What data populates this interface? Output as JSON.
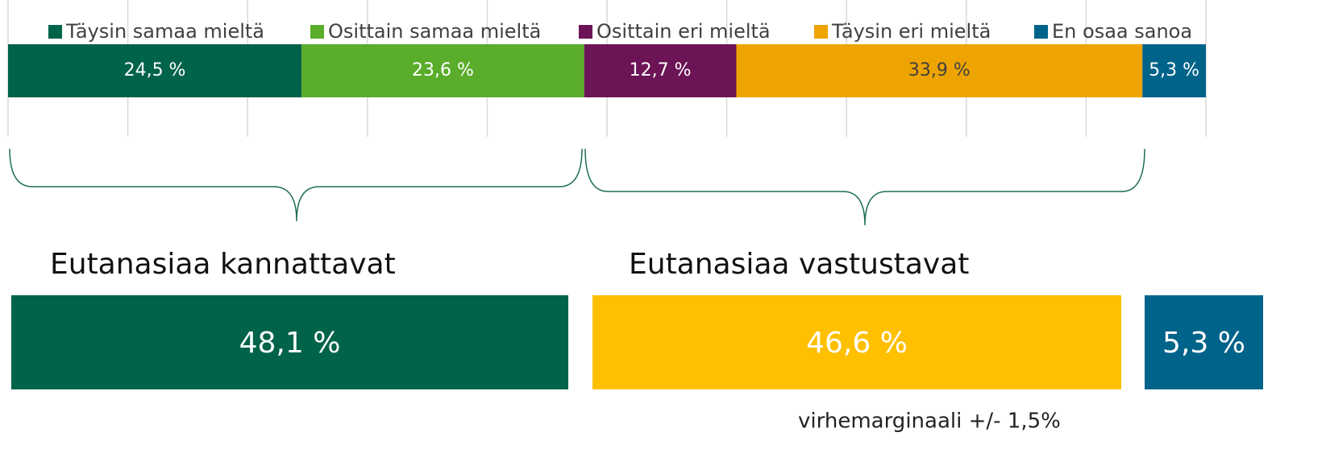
{
  "chart_data": {
    "type": "stacked-bar-horizontal",
    "categories": [
      null
    ],
    "series": [
      {
        "name": "Täysin samaa mieltä",
        "color": "#00634a",
        "values": [
          24.5
        ],
        "value_labels": [
          "24,5 %"
        ]
      },
      {
        "name": "Osittain samaa mieltä",
        "color": "#5aad2b",
        "values": [
          23.6
        ],
        "value_labels": [
          "23,6 %"
        ]
      },
      {
        "name": "Osittain eri mieltä",
        "color": "#6c1456",
        "values": [
          12.7
        ],
        "value_labels": [
          "12,7 %"
        ]
      },
      {
        "name": "Täysin eri mieltä",
        "color": "#eea400",
        "values": [
          33.9
        ],
        "value_labels": [
          "33,9 %"
        ]
      },
      {
        "name": "En osaa sanoa",
        "color": "#00638a",
        "values": [
          5.3
        ],
        "value_labels": [
          "5,3 %"
        ]
      }
    ],
    "xlim": [
      0,
      100
    ],
    "xticks": [
      0,
      10,
      20,
      30,
      40,
      50,
      60,
      70,
      80,
      90,
      100
    ],
    "grid": true,
    "legend": "top",
    "summary": [
      {
        "title": "Eutanasiaa kannattavat",
        "label": "48,1 %",
        "color": "#00634a"
      },
      {
        "title": "Eutanasiaa vastustavat",
        "label": "46,6 %",
        "color": "#ffc000"
      },
      {
        "title": null,
        "label": "5,3 %",
        "color": "#00638a"
      }
    ],
    "note": "virhemarginaali +/- 1,5%"
  }
}
